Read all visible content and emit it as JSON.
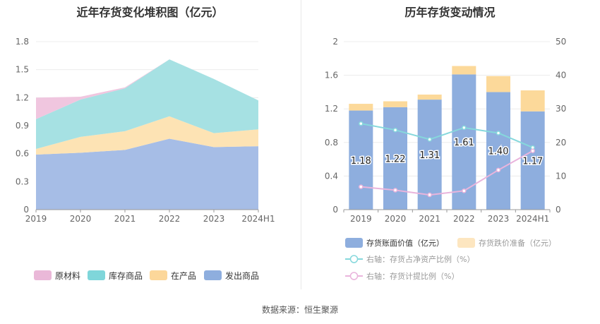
{
  "source_text": "数据来源：恒生聚源",
  "chart_data": [
    {
      "type": "area",
      "title": "近年存货变化堆积图（亿元）",
      "categories": [
        "2019",
        "2020",
        "2021",
        "2022",
        "2023",
        "2024H1"
      ],
      "ylim": [
        0,
        1.8
      ],
      "yticks": [
        "0",
        "0.3",
        "0.6",
        "0.9",
        "1.2",
        "1.5",
        "1.8"
      ],
      "stacked": true,
      "legend_position": "bottom",
      "grid": true,
      "series": [
        {
          "name": "发出商品",
          "color": "#a6bde6",
          "values": [
            0.59,
            0.61,
            0.64,
            0.76,
            0.67,
            0.68
          ]
        },
        {
          "name": "在产品",
          "color": "#fde3b4",
          "values": [
            0.06,
            0.17,
            0.2,
            0.24,
            0.15,
            0.18
          ]
        },
        {
          "name": "库存商品",
          "color": "#a6e1e3",
          "values": [
            0.32,
            0.4,
            0.46,
            0.61,
            0.58,
            0.31
          ]
        },
        {
          "name": "原材料",
          "color": "#f0c6df",
          "values": [
            0.23,
            0.03,
            0.01,
            0.0,
            0.0,
            0.0
          ]
        }
      ],
      "legend_order": [
        "原材料",
        "库存商品",
        "在产品",
        "发出商品"
      ],
      "legend_colors": [
        "#eab8d8",
        "#7fd6da",
        "#fcd79a",
        "#8eaede"
      ]
    },
    {
      "type": "bar",
      "title": "历年存货变动情况",
      "categories": [
        "2019",
        "2020",
        "2021",
        "2022",
        "2023",
        "2024H1"
      ],
      "ylim": [
        0,
        2
      ],
      "yticks": [
        "0",
        "0.4",
        "0.8",
        "1.2",
        "1.6",
        "2"
      ],
      "y2lim": [
        0,
        50
      ],
      "y2ticks": [
        "0",
        "10",
        "20",
        "30",
        "40",
        "50"
      ],
      "stacked": true,
      "legend_position": "bottom",
      "bar_series": [
        {
          "name": "存货账面价值（亿元）",
          "color": "#8eaede",
          "values": [
            1.18,
            1.22,
            1.31,
            1.61,
            1.4,
            1.17
          ],
          "labels": [
            "1.18",
            "1.22",
            "1.31",
            "1.61",
            "1.40",
            "1.17"
          ]
        },
        {
          "name": "存货跌价准备（亿元）",
          "color": "#fcd99a",
          "values": [
            0.08,
            0.07,
            0.06,
            0.1,
            0.19,
            0.25
          ]
        }
      ],
      "line_series": [
        {
          "name": "右轴：存货占净资产比例（%）",
          "color": "#86d8dc",
          "values": [
            25.6,
            23.7,
            20.9,
            24.4,
            22.8,
            18.5
          ]
        },
        {
          "name": "右轴：存货计提比例（%）",
          "color": "#e9b4dc",
          "values": [
            6.8,
            5.8,
            4.4,
            5.6,
            11.8,
            17.5
          ]
        }
      ]
    }
  ]
}
